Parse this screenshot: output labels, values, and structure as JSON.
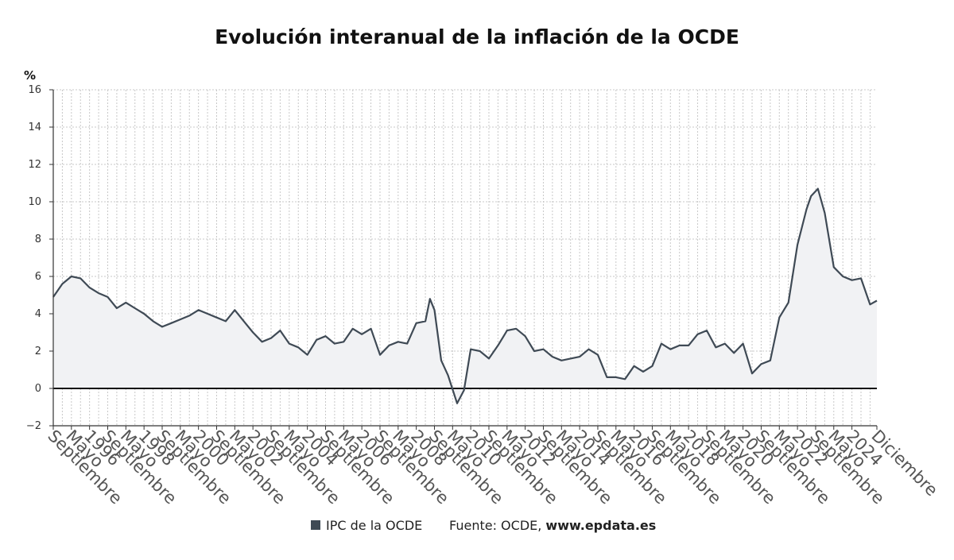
{
  "chart_data": {
    "type": "area",
    "title": "Evolución interanual de la inflación de la OCDE",
    "y_unit_label": "%",
    "ylim": [
      -2,
      16
    ],
    "y_ticks": [
      16,
      14,
      12,
      10,
      8,
      6,
      4,
      2,
      0,
      -2
    ],
    "grid": true,
    "x_range": [
      "1994-09",
      "2024-12"
    ],
    "x_tick_labels": [
      {
        "date": "1994-09",
        "label": "Septiembre"
      },
      {
        "date": "1995-05",
        "label": "Mayo"
      },
      {
        "date": "1996-01",
        "label": "1996"
      },
      {
        "date": "1996-09",
        "label": "Septiembre"
      },
      {
        "date": "1997-05",
        "label": "Mayo"
      },
      {
        "date": "1998-01",
        "label": "1998"
      },
      {
        "date": "1998-09",
        "label": "Septiembre"
      },
      {
        "date": "1999-05",
        "label": "Mayo"
      },
      {
        "date": "2000-01",
        "label": "2000"
      },
      {
        "date": "2000-09",
        "label": "Septiembre"
      },
      {
        "date": "2001-05",
        "label": "Mayo"
      },
      {
        "date": "2002-01",
        "label": "2002"
      },
      {
        "date": "2002-09",
        "label": "Septiembre"
      },
      {
        "date": "2003-05",
        "label": "Mayo"
      },
      {
        "date": "2004-01",
        "label": "2004"
      },
      {
        "date": "2004-09",
        "label": "Septiembre"
      },
      {
        "date": "2005-05",
        "label": "Mayo"
      },
      {
        "date": "2006-01",
        "label": "2006"
      },
      {
        "date": "2006-09",
        "label": "Septiembre"
      },
      {
        "date": "2007-05",
        "label": "Mayo"
      },
      {
        "date": "2008-01",
        "label": "2008"
      },
      {
        "date": "2008-09",
        "label": "Septiembre"
      },
      {
        "date": "2009-05",
        "label": "Mayo"
      },
      {
        "date": "2010-01",
        "label": "2010"
      },
      {
        "date": "2010-09",
        "label": "Septiembre"
      },
      {
        "date": "2011-05",
        "label": "Mayo"
      },
      {
        "date": "2012-01",
        "label": "2012"
      },
      {
        "date": "2012-09",
        "label": "Septiembre"
      },
      {
        "date": "2013-05",
        "label": "Mayo"
      },
      {
        "date": "2014-01",
        "label": "2014"
      },
      {
        "date": "2014-09",
        "label": "Septiembre"
      },
      {
        "date": "2015-05",
        "label": "Mayo"
      },
      {
        "date": "2016-01",
        "label": "2016"
      },
      {
        "date": "2016-09",
        "label": "Septiembre"
      },
      {
        "date": "2017-05",
        "label": "Mayo"
      },
      {
        "date": "2018-01",
        "label": "2018"
      },
      {
        "date": "2018-09",
        "label": "Septiembre"
      },
      {
        "date": "2019-05",
        "label": "Mayo"
      },
      {
        "date": "2020-01",
        "label": "2020"
      },
      {
        "date": "2020-09",
        "label": "Septiembre"
      },
      {
        "date": "2021-05",
        "label": "Mayo"
      },
      {
        "date": "2022-01",
        "label": "2022"
      },
      {
        "date": "2022-09",
        "label": "Septiembre"
      },
      {
        "date": "2023-05",
        "label": "Mayo"
      },
      {
        "date": "2024-01",
        "label": "2024"
      },
      {
        "date": "2024-12",
        "label": "Diciembre"
      }
    ],
    "series": [
      {
        "name": "IPC de la OCDE",
        "color": "#3f4a55",
        "fill": "#f1f2f4",
        "points": [
          [
            "1994-09",
            4.9
          ],
          [
            "1995-01",
            5.6
          ],
          [
            "1995-05",
            6.0
          ],
          [
            "1995-09",
            5.9
          ],
          [
            "1996-01",
            5.4
          ],
          [
            "1996-05",
            5.1
          ],
          [
            "1996-09",
            4.9
          ],
          [
            "1997-01",
            4.3
          ],
          [
            "1997-05",
            4.6
          ],
          [
            "1997-09",
            4.3
          ],
          [
            "1998-01",
            4.0
          ],
          [
            "1998-05",
            3.6
          ],
          [
            "1998-09",
            3.3
          ],
          [
            "1999-01",
            3.5
          ],
          [
            "1999-05",
            3.7
          ],
          [
            "1999-09",
            3.9
          ],
          [
            "2000-01",
            4.2
          ],
          [
            "2000-05",
            4.0
          ],
          [
            "2000-09",
            3.8
          ],
          [
            "2001-01",
            3.6
          ],
          [
            "2001-05",
            4.2
          ],
          [
            "2001-09",
            3.6
          ],
          [
            "2002-01",
            3.0
          ],
          [
            "2002-05",
            2.5
          ],
          [
            "2002-09",
            2.7
          ],
          [
            "2003-01",
            3.1
          ],
          [
            "2003-05",
            2.4
          ],
          [
            "2003-09",
            2.2
          ],
          [
            "2004-01",
            1.8
          ],
          [
            "2004-05",
            2.6
          ],
          [
            "2004-09",
            2.8
          ],
          [
            "2005-01",
            2.4
          ],
          [
            "2005-05",
            2.5
          ],
          [
            "2005-09",
            3.2
          ],
          [
            "2006-01",
            2.9
          ],
          [
            "2006-05",
            3.2
          ],
          [
            "2006-09",
            1.8
          ],
          [
            "2007-01",
            2.3
          ],
          [
            "2007-05",
            2.5
          ],
          [
            "2007-09",
            2.4
          ],
          [
            "2008-01",
            3.5
          ],
          [
            "2008-05",
            3.6
          ],
          [
            "2008-07",
            4.8
          ],
          [
            "2008-09",
            4.2
          ],
          [
            "2008-12",
            1.5
          ],
          [
            "2009-03",
            0.7
          ],
          [
            "2009-07",
            -0.8
          ],
          [
            "2009-10",
            -0.1
          ],
          [
            "2010-01",
            2.1
          ],
          [
            "2010-05",
            2.0
          ],
          [
            "2010-09",
            1.6
          ],
          [
            "2011-01",
            2.3
          ],
          [
            "2011-05",
            3.1
          ],
          [
            "2011-09",
            3.2
          ],
          [
            "2012-01",
            2.8
          ],
          [
            "2012-05",
            2.0
          ],
          [
            "2012-09",
            2.1
          ],
          [
            "2013-01",
            1.7
          ],
          [
            "2013-05",
            1.5
          ],
          [
            "2013-09",
            1.6
          ],
          [
            "2014-01",
            1.7
          ],
          [
            "2014-05",
            2.1
          ],
          [
            "2014-09",
            1.8
          ],
          [
            "2015-01",
            0.6
          ],
          [
            "2015-05",
            0.6
          ],
          [
            "2015-09",
            0.5
          ],
          [
            "2016-01",
            1.2
          ],
          [
            "2016-05",
            0.9
          ],
          [
            "2016-09",
            1.2
          ],
          [
            "2017-01",
            2.4
          ],
          [
            "2017-05",
            2.1
          ],
          [
            "2017-09",
            2.3
          ],
          [
            "2018-01",
            2.3
          ],
          [
            "2018-05",
            2.9
          ],
          [
            "2018-09",
            3.1
          ],
          [
            "2019-01",
            2.2
          ],
          [
            "2019-05",
            2.4
          ],
          [
            "2019-09",
            1.9
          ],
          [
            "2020-01",
            2.4
          ],
          [
            "2020-05",
            0.8
          ],
          [
            "2020-09",
            1.3
          ],
          [
            "2021-01",
            1.5
          ],
          [
            "2021-05",
            3.8
          ],
          [
            "2021-09",
            4.6
          ],
          [
            "2022-01",
            7.7
          ],
          [
            "2022-05",
            9.6
          ],
          [
            "2022-07",
            10.3
          ],
          [
            "2022-10",
            10.7
          ],
          [
            "2023-01",
            9.4
          ],
          [
            "2023-05",
            6.5
          ],
          [
            "2023-09",
            6.0
          ],
          [
            "2024-01",
            5.8
          ],
          [
            "2024-05",
            5.9
          ],
          [
            "2024-09",
            4.5
          ],
          [
            "2024-12",
            4.7
          ]
        ]
      }
    ]
  },
  "legend": {
    "series_label": "IPC de la OCDE",
    "source_prefix": "Fuente: OCDE, ",
    "source_site": "www.epdata.es"
  }
}
